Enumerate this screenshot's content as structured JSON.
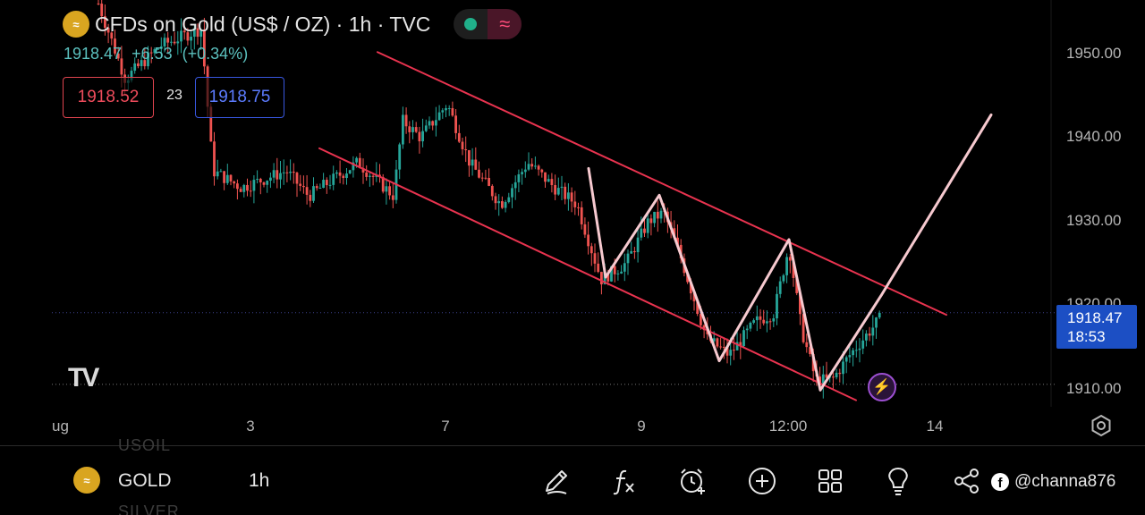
{
  "header": {
    "title": "CFDs on Gold (US$ / OZ) · 1h · TVC",
    "gold_icon_text": "≈",
    "pill_right": "≈",
    "price": "1918.47",
    "change": "+6.53",
    "change_pct": "(+0.34%)"
  },
  "trade": {
    "sell_price": "1918.52",
    "spread": "23",
    "buy_price": "1918.75"
  },
  "watermark_logo": "TV",
  "price_axis": {
    "labels": [
      "1950.00",
      "1940.00",
      "1930.00",
      "1920.00",
      "1910.00"
    ],
    "current_price": "1918.47",
    "countdown": "18:53"
  },
  "time_axis": {
    "labels": [
      "ug",
      "3",
      "7",
      "9",
      "12:00",
      "14"
    ]
  },
  "alert_icon": "⚡",
  "bottom_bar": {
    "ghost_above": "USOIL",
    "ghost_below": "SILVER",
    "symbol": "GOLD",
    "timeframe": "1h",
    "tools": [
      "pencil-icon",
      "function-icon",
      "alarm-icon",
      "plus-circle-icon",
      "grid-icon",
      "lightbulb-icon",
      "share-icon"
    ],
    "watermark_text": "@channa876"
  },
  "colors": {
    "background": "#000000",
    "up_candle": "#26a69a",
    "down_candle": "#ef5350",
    "channel_line": "#e8334f",
    "zigzag": "#f6c9cf",
    "price_tag": "#1c4fc4",
    "accent_purple": "#9c4fd1"
  },
  "chart_data": {
    "type": "candlestick",
    "symbol": "CFDs on Gold (US$ / OZ)",
    "timeframe": "1h",
    "ylim": [
      1908,
      1955
    ],
    "x_ticks": [
      "3",
      "7",
      "9",
      "12:00",
      "14"
    ],
    "y_ticks": [
      1950,
      1940,
      1930,
      1920,
      1910
    ],
    "last_price": 1918.47,
    "reference_price": 1919.05,
    "support_price": 1910.5,
    "price_path_waypoints": [
      {
        "x": 110,
        "y": 1956
      },
      {
        "x": 140,
        "y": 1947
      },
      {
        "x": 180,
        "y": 1951
      },
      {
        "x": 225,
        "y": 1953
      },
      {
        "x": 238,
        "y": 1936
      },
      {
        "x": 270,
        "y": 1934
      },
      {
        "x": 320,
        "y": 1936
      },
      {
        "x": 345,
        "y": 1933
      },
      {
        "x": 400,
        "y": 1937
      },
      {
        "x": 440,
        "y": 1933
      },
      {
        "x": 450,
        "y": 1942
      },
      {
        "x": 470,
        "y": 1940
      },
      {
        "x": 500,
        "y": 1944
      },
      {
        "x": 525,
        "y": 1937
      },
      {
        "x": 560,
        "y": 1932
      },
      {
        "x": 590,
        "y": 1937
      },
      {
        "x": 620,
        "y": 1934
      },
      {
        "x": 645,
        "y": 1932
      },
      {
        "x": 672,
        "y": 1923
      },
      {
        "x": 700,
        "y": 1925
      },
      {
        "x": 725,
        "y": 1930
      },
      {
        "x": 742,
        "y": 1931
      },
      {
        "x": 760,
        "y": 1926
      },
      {
        "x": 790,
        "y": 1916
      },
      {
        "x": 815,
        "y": 1914
      },
      {
        "x": 845,
        "y": 1918
      },
      {
        "x": 865,
        "y": 1919
      },
      {
        "x": 882,
        "y": 1927
      },
      {
        "x": 896,
        "y": 1917
      },
      {
        "x": 912,
        "y": 1911
      },
      {
        "x": 930,
        "y": 1911
      },
      {
        "x": 950,
        "y": 1914
      },
      {
        "x": 985,
        "y": 1918.5
      }
    ],
    "channel_upper": [
      {
        "x": 422,
        "y": 1950.2
      },
      {
        "x": 1058,
        "y": 1918.8
      }
    ],
    "channel_lower": [
      {
        "x": 357,
        "y": 1938.7
      },
      {
        "x": 957,
        "y": 1908.6
      }
    ],
    "zigzag_projection": [
      {
        "x": 658,
        "y": 1936.3
      },
      {
        "x": 677,
        "y": 1923.3
      },
      {
        "x": 737,
        "y": 1933.1
      },
      {
        "x": 804,
        "y": 1913.3
      },
      {
        "x": 882,
        "y": 1927.8
      },
      {
        "x": 917,
        "y": 1909.8
      },
      {
        "x": 985,
        "y": 1921.1
      },
      {
        "x": 1108,
        "y": 1942.7
      }
    ]
  }
}
